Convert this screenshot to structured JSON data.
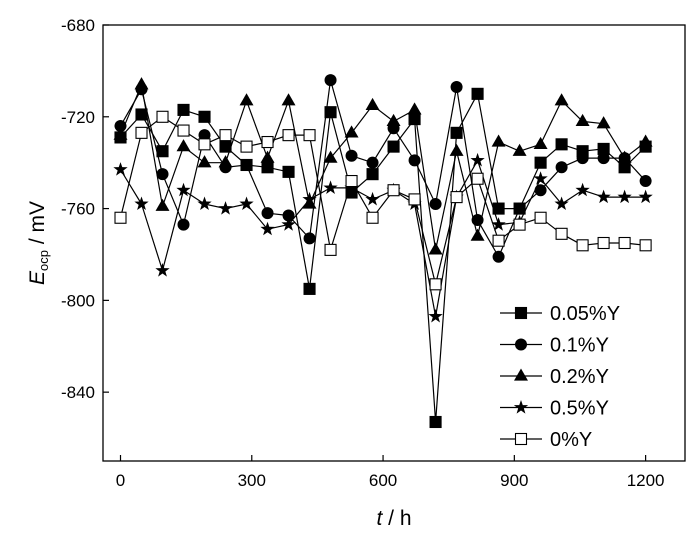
{
  "chart_data": {
    "type": "line",
    "xlabel": {
      "var": "t",
      "unit": " / h"
    },
    "ylabel": {
      "var": "E",
      "sub": "ocp",
      "unit": " / mV"
    },
    "xlim": [
      -40,
      1290
    ],
    "ylim": [
      -870,
      -680
    ],
    "xticks": [
      0,
      300,
      600,
      900,
      1200
    ],
    "yticks": [
      -680,
      -720,
      -760,
      -800,
      -840
    ],
    "x": [
      0,
      48,
      96,
      144,
      192,
      240,
      288,
      336,
      384,
      432,
      480,
      528,
      576,
      624,
      672,
      720,
      768,
      816,
      864,
      912,
      960,
      1008,
      1056,
      1104,
      1152,
      1200
    ],
    "legend_position": "lower-right",
    "series": [
      {
        "name": "0.05%Y",
        "marker": "square-filled",
        "values": [
          -729,
          -719,
          -735,
          -717,
          -720,
          -733,
          -741,
          -742,
          -744,
          -795,
          -718,
          -753,
          -745,
          -733,
          -721,
          -853,
          -727,
          -710,
          -760,
          -760,
          -740,
          -732,
          -735,
          -734,
          -742,
          -733
        ]
      },
      {
        "name": "0.1%Y",
        "marker": "circle-filled",
        "values": [
          -724,
          -708,
          -745,
          -767,
          -728,
          -742,
          -741,
          -762,
          -763,
          -773,
          -704,
          -737,
          -740,
          -725,
          -739,
          -758,
          -707,
          -765,
          -781,
          -760,
          -752,
          -742,
          -738,
          -738,
          -738,
          -748
        ]
      },
      {
        "name": "0.2%Y",
        "marker": "triangle-filled",
        "values": [
          -728,
          -706,
          -759,
          -733,
          -740,
          -740,
          -713,
          -738,
          -713,
          -758,
          -738,
          -727,
          -715,
          -722,
          -717,
          -778,
          -735,
          -772,
          -731,
          -735,
          -732,
          -713,
          -722,
          -723,
          -738,
          -731
        ]
      },
      {
        "name": "0.5%Y",
        "marker": "star-filled",
        "values": [
          -743,
          -758,
          -787,
          -752,
          -758,
          -760,
          -758,
          -769,
          -767,
          -756,
          -751,
          -751,
          -756,
          -752,
          -758,
          -807,
          -755,
          -739,
          -767,
          -766,
          -747,
          -758,
          -752,
          -755,
          -755,
          -755
        ]
      },
      {
        "name": "0%Y",
        "marker": "square-open",
        "values": [
          -764,
          -727,
          -720,
          -726,
          -732,
          -728,
          -733,
          -731,
          -728,
          -728,
          -778,
          -748,
          -764,
          -752,
          -756,
          -793,
          -755,
          -747,
          -774,
          -767,
          -764,
          -771,
          -776,
          -775,
          -775,
          -776
        ]
      }
    ]
  }
}
